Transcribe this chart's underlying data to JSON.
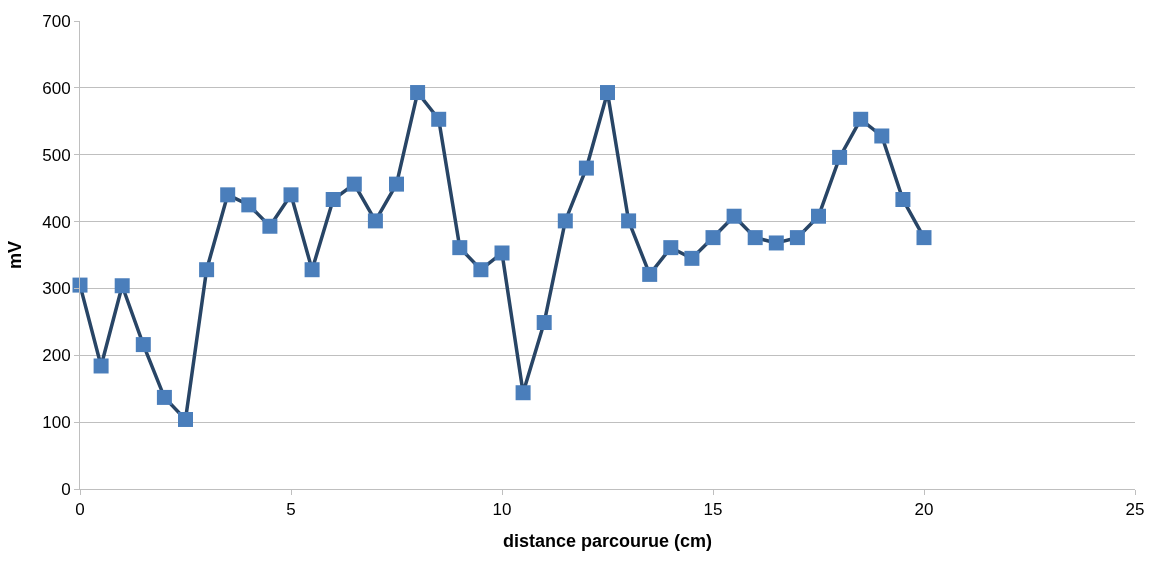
{
  "chart_data": {
    "type": "line",
    "xlabel": "distance parcourue (cm)",
    "ylabel": "mV",
    "x": [
      0,
      0.5,
      1,
      1.5,
      2,
      2.5,
      3,
      3.5,
      4,
      4.5,
      5,
      5.5,
      6,
      6.5,
      7,
      7.5,
      8,
      8.5,
      9,
      9.5,
      10,
      10.5,
      11,
      11.5,
      12,
      12.5,
      13,
      13.5,
      14,
      14.5,
      15,
      15.5,
      16,
      16.5,
      17,
      17.5,
      18,
      18.5,
      19,
      19.5,
      20
    ],
    "series": [
      {
        "color": "#4a7ebb",
        "values": [
          305,
          184,
          304,
          216,
          137,
          104,
          328,
          440,
          425,
          393,
          440,
          328,
          433,
          456,
          401,
          456,
          593,
          553,
          361,
          328,
          353,
          144,
          249,
          401,
          480,
          593,
          401,
          321,
          361,
          345,
          376,
          408,
          376,
          368,
          376,
          408,
          496,
          553,
          528,
          433,
          376
        ]
      }
    ],
    "xlim": [
      0,
      25
    ],
    "xticks": [
      0,
      5,
      10,
      15,
      20,
      25
    ],
    "ylim": [
      0,
      700
    ],
    "yticks": [
      0,
      100,
      200,
      300,
      400,
      500,
      600,
      700
    ],
    "grid": "y",
    "marker": "square",
    "line_style": "solid"
  }
}
